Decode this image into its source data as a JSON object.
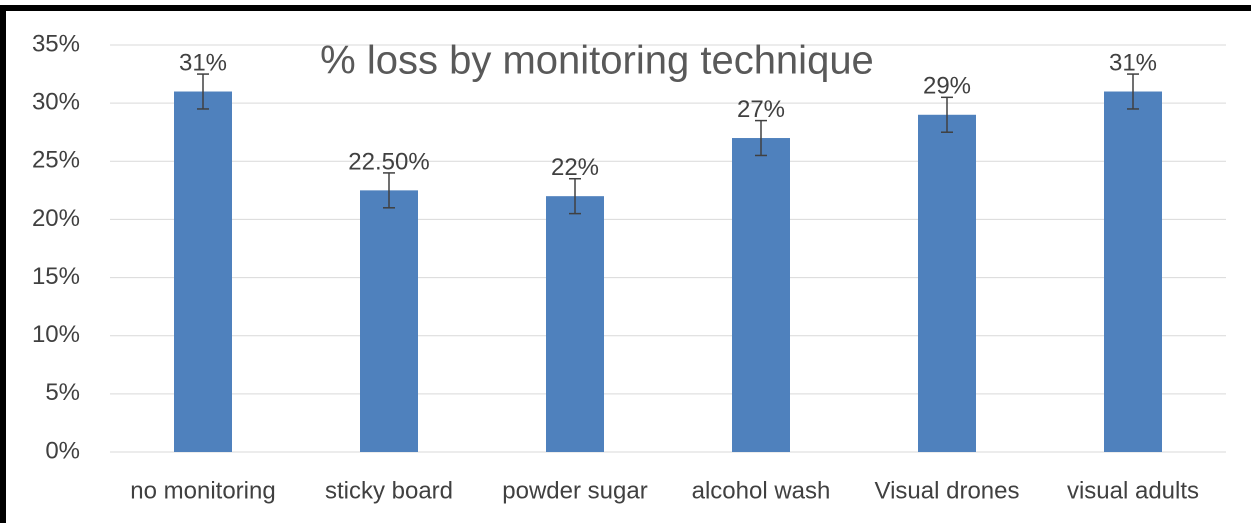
{
  "chart_data": {
    "type": "bar",
    "title": "% loss by monitoring technique",
    "categories": [
      "no monitoring",
      "sticky board",
      "powder sugar",
      "alcohol wash",
      "Visual drones",
      "visual adults"
    ],
    "values": [
      31,
      22.5,
      22,
      27,
      29,
      31
    ],
    "value_labels": [
      "31%",
      "22.50%",
      "22%",
      "27%",
      "29%",
      "31%"
    ],
    "errors": [
      1.5,
      1.5,
      1.5,
      1.5,
      1.5,
      1.5
    ],
    "color": "#4f81bd",
    "ylim": [
      0,
      35
    ],
    "yticks": [
      {
        "value": 0,
        "label": "0%"
      },
      {
        "value": 5,
        "label": "5%"
      },
      {
        "value": 10,
        "label": "10%"
      },
      {
        "value": 15,
        "label": "15%"
      },
      {
        "value": 20,
        "label": "20%"
      },
      {
        "value": 25,
        "label": "25%"
      },
      {
        "value": 30,
        "label": "30%"
      },
      {
        "value": 35,
        "label": "35%"
      }
    ],
    "grid": true
  }
}
